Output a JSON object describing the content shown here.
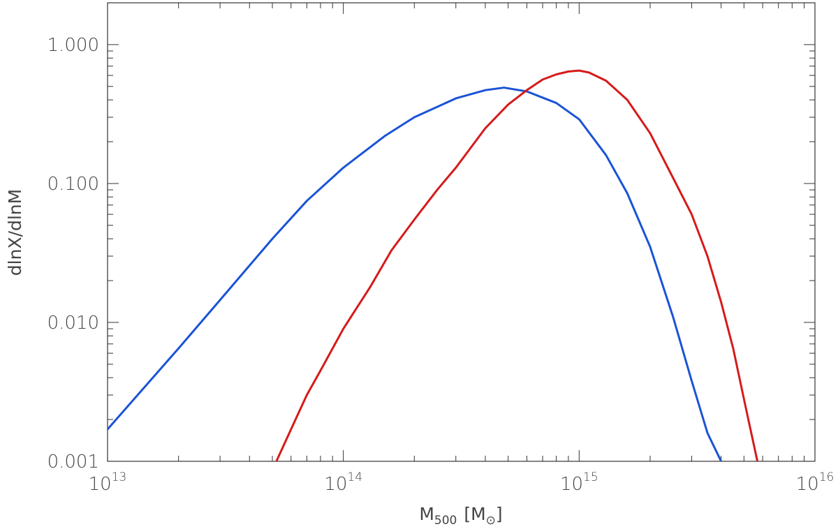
{
  "chart_data": {
    "type": "line",
    "xscale": "log",
    "yscale": "log",
    "xlim": [
      10000000000000.0,
      1e+16
    ],
    "ylim": [
      0.001,
      2.0
    ],
    "grid": false,
    "xlabel": {
      "base": "M",
      "sub": "500",
      "unit_open": "[M",
      "unit_sym": "⊙",
      "unit_close": "]"
    },
    "ylabel": "dlnX/dlnM",
    "x_ticks": [
      {
        "value": 10000000000000.0,
        "base": "10",
        "exp": "13"
      },
      {
        "value": 100000000000000.0,
        "base": "10",
        "exp": "14"
      },
      {
        "value": 1000000000000000.0,
        "base": "10",
        "exp": "15"
      },
      {
        "value": 1e+16,
        "base": "10",
        "exp": "16"
      }
    ],
    "y_ticks": [
      {
        "value": 0.001,
        "label": "0.001"
      },
      {
        "value": 0.01,
        "label": "0.010"
      },
      {
        "value": 0.1,
        "label": "0.100"
      },
      {
        "value": 1.0,
        "label": "1.000"
      }
    ],
    "series": [
      {
        "color": "#1a53d6",
        "x": [
          10000000000000.0,
          20000000000000.0,
          30000000000000.0,
          50000000000000.0,
          70000000000000.0,
          100000000000000.0,
          150000000000000.0,
          200000000000000.0,
          300000000000000.0,
          400000000000000.0,
          480000000000000.0,
          600000000000000.0,
          800000000000000.0,
          1000000000000000.0,
          1300000000000000.0,
          1600000000000000.0,
          2000000000000000.0,
          2500000000000000.0,
          3000000000000000.0,
          3500000000000000.0,
          4000000000000000.0
        ],
        "y": [
          0.0017,
          0.0065,
          0.0145,
          0.04,
          0.075,
          0.13,
          0.22,
          0.3,
          0.41,
          0.47,
          0.49,
          0.46,
          0.38,
          0.29,
          0.16,
          0.085,
          0.035,
          0.011,
          0.0038,
          0.0016,
          0.001
        ]
      },
      {
        "color": "#d61a1a",
        "x": [
          52000000000000.0,
          60000000000000.0,
          70000000000000.0,
          80000000000000.0,
          100000000000000.0,
          130000000000000.0,
          160000000000000.0,
          200000000000000.0,
          250000000000000.0,
          300000000000000.0,
          400000000000000.0,
          500000000000000.0,
          600000000000000.0,
          700000000000000.0,
          800000000000000.0,
          900000000000000.0,
          1000000000000000.0,
          1100000000000000.0,
          1300000000000000.0,
          1600000000000000.0,
          2000000000000000.0,
          2500000000000000.0,
          3000000000000000.0,
          3500000000000000.0,
          4000000000000000.0,
          4500000000000000.0,
          5000000000000000.0,
          5700000000000000.0
        ],
        "y": [
          0.001,
          0.0017,
          0.003,
          0.0045,
          0.009,
          0.018,
          0.033,
          0.055,
          0.09,
          0.13,
          0.25,
          0.37,
          0.47,
          0.56,
          0.61,
          0.64,
          0.65,
          0.63,
          0.55,
          0.4,
          0.23,
          0.11,
          0.06,
          0.03,
          0.014,
          0.0065,
          0.0028,
          0.001
        ]
      }
    ]
  }
}
